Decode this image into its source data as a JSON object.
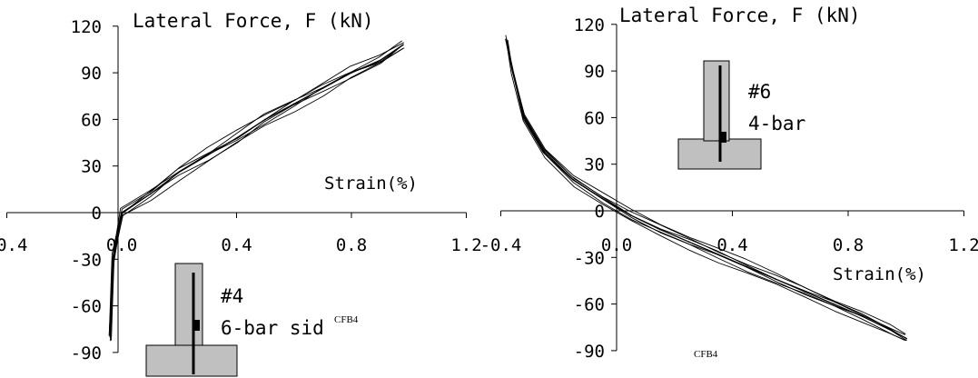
{
  "chart_data": [
    {
      "type": "line",
      "title": "Lateral Force, F (kN)",
      "xlabel": "Strain(%)",
      "ylabel": "Lateral Force, F (kN)",
      "xlim": [
        -0.4,
        1.2
      ],
      "ylim": [
        -90,
        120
      ],
      "xticks": [
        -0.4,
        0.0,
        0.4,
        0.8,
        1.2
      ],
      "xtick_labels": [
        "-0.4",
        "0.0",
        "0.4",
        "0.8",
        "1.2"
      ],
      "yticks": [
        -90,
        -60,
        -30,
        0,
        30,
        60,
        90,
        120
      ],
      "ytick_labels": [
        "-90",
        "-60",
        "-30",
        "0",
        "30",
        "60",
        "90",
        "120"
      ],
      "grid": false,
      "inset": {
        "gauge_label": "#4",
        "bar_label": "6-bar sid"
      },
      "watermark": "CFB4",
      "series": [
        {
          "x": [
            -0.04,
            -0.03,
            0.0,
            0.1,
            0.2,
            0.3,
            0.4,
            0.5,
            0.6,
            0.7,
            0.8,
            0.9,
            0.98
          ],
          "y": [
            -80,
            -30,
            0,
            12,
            26,
            37,
            48,
            60,
            70,
            80,
            90,
            98,
            108
          ]
        }
      ]
    },
    {
      "type": "line",
      "title": "Lateral Force, F (kN)",
      "xlabel": "Strain(%)",
      "ylabel": "Lateral Force, F (kN)",
      "xlim": [
        -0.4,
        1.2
      ],
      "ylim": [
        -90,
        120
      ],
      "xticks": [
        -0.4,
        0.0,
        0.4,
        0.8,
        1.2
      ],
      "xtick_labels": [
        "-0.4",
        "0.0",
        "0.4",
        "0.8",
        "1.2"
      ],
      "yticks": [
        -90,
        -60,
        -30,
        0,
        30,
        60,
        90,
        120
      ],
      "ytick_labels": [
        "-90",
        "-60",
        "-30",
        "0",
        "30",
        "60",
        "90",
        "120"
      ],
      "grid": false,
      "inset": {
        "gauge_label": "#6",
        "bar_label": "4-bar"
      },
      "watermark": "CFB4",
      "series": [
        {
          "x": [
            -0.38,
            -0.36,
            -0.32,
            -0.25,
            -0.15,
            -0.05,
            0.05,
            0.15,
            0.25,
            0.35,
            0.45,
            0.55,
            0.65,
            0.75,
            0.85,
            0.95,
            1.0
          ],
          "y": [
            110,
            90,
            60,
            38,
            20,
            8,
            -3,
            -12,
            -20,
            -28,
            -36,
            -44,
            -52,
            -60,
            -68,
            -77,
            -82
          ]
        }
      ]
    }
  ]
}
